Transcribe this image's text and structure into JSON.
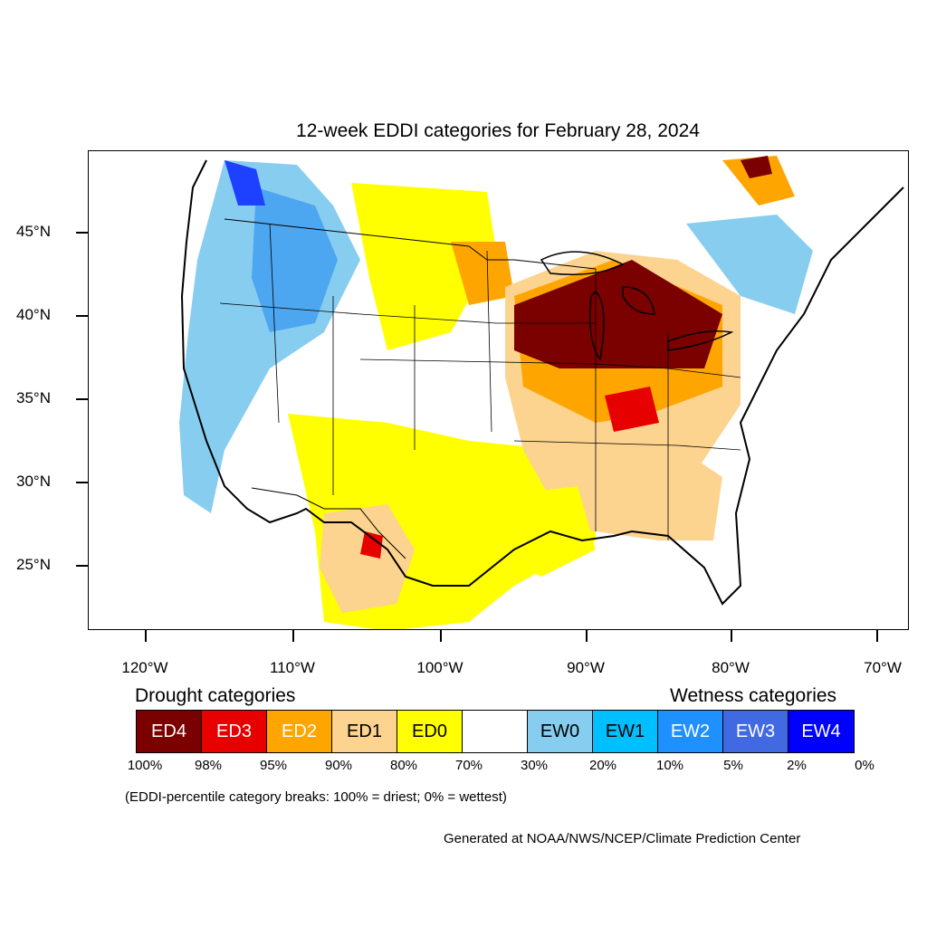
{
  "title": "12-week EDDI categories for February 28, 2024",
  "map": {
    "projection": "lat-lon",
    "lon_range": [
      -124.5,
      -68.5
    ],
    "lat_range": [
      21,
      50
    ],
    "y_ticks": [
      {
        "lat": 45,
        "label": "45°N"
      },
      {
        "lat": 40,
        "label": "40°N"
      },
      {
        "lat": 35,
        "label": "35°N"
      },
      {
        "lat": 30,
        "label": "30°N"
      },
      {
        "lat": 25,
        "label": "25°N"
      }
    ],
    "x_ticks": [
      {
        "lon": -120,
        "label": "120°W"
      },
      {
        "lon": -110,
        "label": "110°W"
      },
      {
        "lon": -100,
        "label": "100°W"
      },
      {
        "lon": -90,
        "label": "90°W"
      },
      {
        "lon": -80,
        "label": "80°W"
      },
      {
        "lon": -70,
        "label": "70°W"
      }
    ]
  },
  "legend": {
    "drought_heading": "Drought categories",
    "wetness_heading": "Wetness categories",
    "categories": [
      {
        "label": "ED4",
        "color": "#7b0000",
        "text_color": "#ffffff"
      },
      {
        "label": "ED3",
        "color": "#e60000",
        "text_color": "#ffffff"
      },
      {
        "label": "ED2",
        "color": "#ffa500",
        "text_color": "#ffffff"
      },
      {
        "label": "ED1",
        "color": "#fcd38f",
        "text_color": "#000000"
      },
      {
        "label": "ED0",
        "color": "#ffff00",
        "text_color": "#000000"
      },
      {
        "label": "",
        "color": "#ffffff",
        "text_color": "#000000"
      },
      {
        "label": "EW0",
        "color": "#87cdf0",
        "text_color": "#000000"
      },
      {
        "label": "EW1",
        "color": "#00bfff",
        "text_color": "#000000"
      },
      {
        "label": "EW2",
        "color": "#1e90ff",
        "text_color": "#ffffff"
      },
      {
        "label": "EW3",
        "color": "#4169e1",
        "text_color": "#ffffff"
      },
      {
        "label": "EW4",
        "color": "#0000ff",
        "text_color": "#ffffff"
      }
    ],
    "breaks": [
      "100%",
      "98%",
      "95%",
      "90%",
      "80%",
      "70%",
      "30%",
      "20%",
      "10%",
      "5%",
      "2%",
      "0%"
    ]
  },
  "note": "(EDDI-percentile category breaks: 100% = driest; 0% = wettest)",
  "credit": "Generated at NOAA/NWS/NCEP/Climate Prediction Center"
}
